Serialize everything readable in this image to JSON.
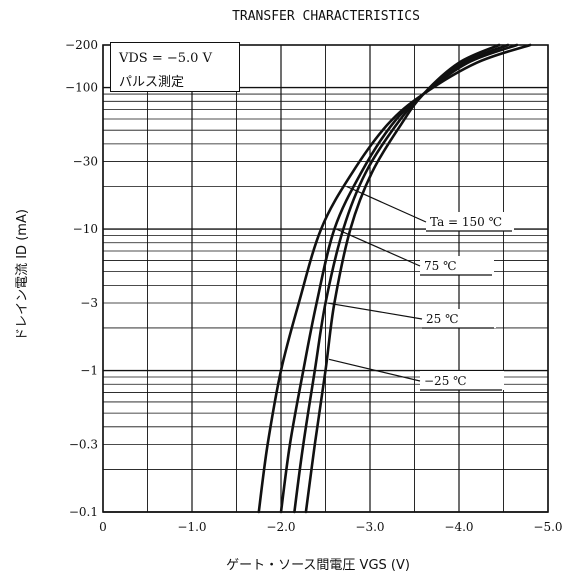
{
  "chart_data": {
    "type": "line",
    "title": "TRANSFER CHARACTERISTICS",
    "xlabel": "ゲート・ソース間電圧 VGS (V)",
    "ylabel": "ドレイン電流 ID (mA)",
    "xlim": [
      0,
      -5.0
    ],
    "ylim": [
      0.1,
      200
    ],
    "yscale": "log",
    "grid": true,
    "xticks": [
      "0",
      "−1.0",
      "−2.0",
      "−3.0",
      "−4.0",
      "−5.0"
    ],
    "yticks": [
      "−200",
      "−100",
      "−30",
      "−10",
      "−3",
      "−1",
      "−0.3",
      "−0.1"
    ],
    "condition": {
      "line1": "VDS = −5.0 V",
      "line2": "パルス測定"
    },
    "series": [
      {
        "name": "Ta = 150 ℃",
        "x": [
          -1.75,
          -1.85,
          -2.0,
          -2.2,
          -2.45,
          -2.8,
          -3.2,
          -3.6,
          -4.2,
          -4.8
        ],
        "y": [
          0.1,
          0.3,
          1,
          3,
          10,
          25,
          55,
          90,
          150,
          200
        ]
      },
      {
        "name": "75 ℃",
        "x": [
          -2.0,
          -2.1,
          -2.25,
          -2.4,
          -2.6,
          -2.9,
          -3.25,
          -3.6,
          -4.1,
          -4.65
        ],
        "y": [
          0.1,
          0.3,
          1,
          3,
          10,
          25,
          55,
          90,
          150,
          200
        ]
      },
      {
        "name": "25 ℃",
        "x": [
          -2.15,
          -2.25,
          -2.38,
          -2.5,
          -2.7,
          -2.95,
          -3.3,
          -3.6,
          -4.05,
          -4.55
        ],
        "y": [
          0.1,
          0.3,
          1,
          3,
          10,
          25,
          55,
          90,
          150,
          200
        ]
      },
      {
        "name": "−25 ℃",
        "x": [
          -2.28,
          -2.38,
          -2.5,
          -2.6,
          -2.78,
          -3.02,
          -3.35,
          -3.6,
          -4.0,
          -4.45
        ],
        "y": [
          0.1,
          0.3,
          1,
          3,
          10,
          25,
          55,
          90,
          150,
          200
        ]
      }
    ]
  }
}
